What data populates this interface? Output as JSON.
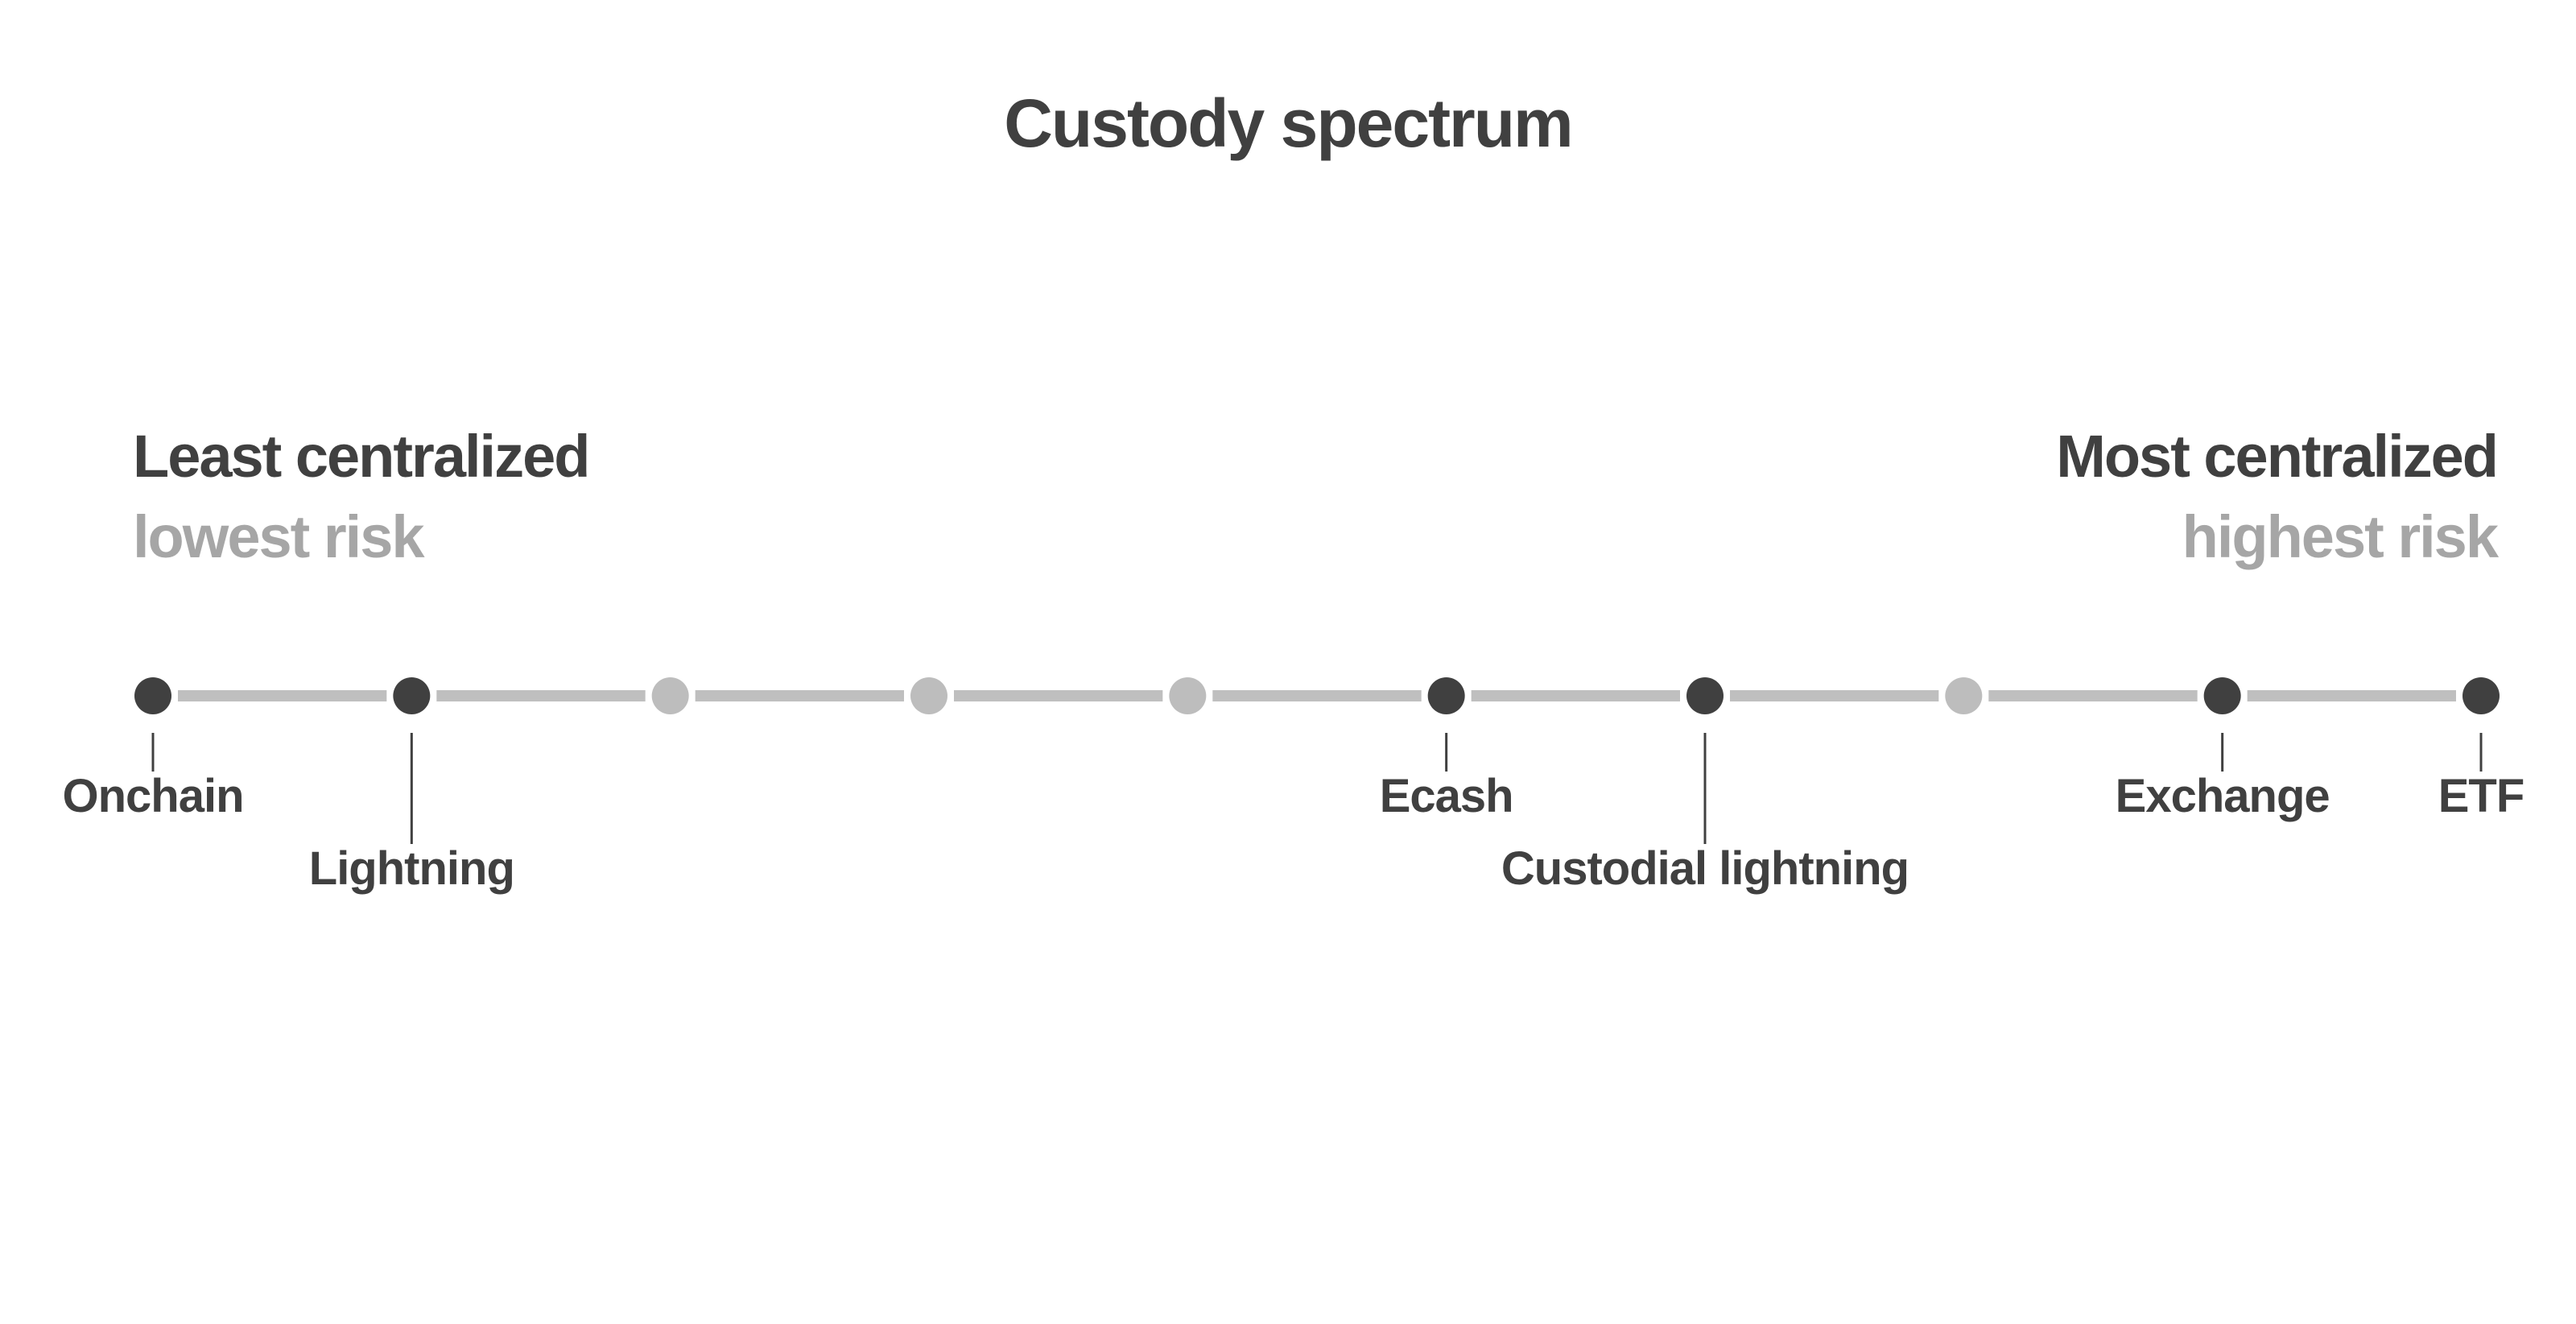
{
  "title": "Custody spectrum",
  "left_end": {
    "heading": "Least centralized",
    "subheading": "lowest risk"
  },
  "right_end": {
    "heading": "Most centralized",
    "subheading": "highest risk"
  },
  "colors": {
    "text_dark": "#404040",
    "text_muted": "#a6a6a6",
    "line": "#bfbfbf",
    "dot_active": "#404040",
    "dot_inactive": "#bdbdbd",
    "background": "#ffffff"
  },
  "spectrum": {
    "stops": [
      {
        "label": "Onchain",
        "active": true,
        "label_row": 1
      },
      {
        "label": "Lightning",
        "active": true,
        "label_row": 2
      },
      {
        "label": "",
        "active": false
      },
      {
        "label": "",
        "active": false
      },
      {
        "label": "",
        "active": false
      },
      {
        "label": "Ecash",
        "active": true,
        "label_row": 1
      },
      {
        "label": "Custodial lightning",
        "active": true,
        "label_row": 2
      },
      {
        "label": "",
        "active": false
      },
      {
        "label": "Exchange",
        "active": true,
        "label_row": 1
      },
      {
        "label": "ETF",
        "active": true,
        "label_row": 1
      }
    ]
  }
}
